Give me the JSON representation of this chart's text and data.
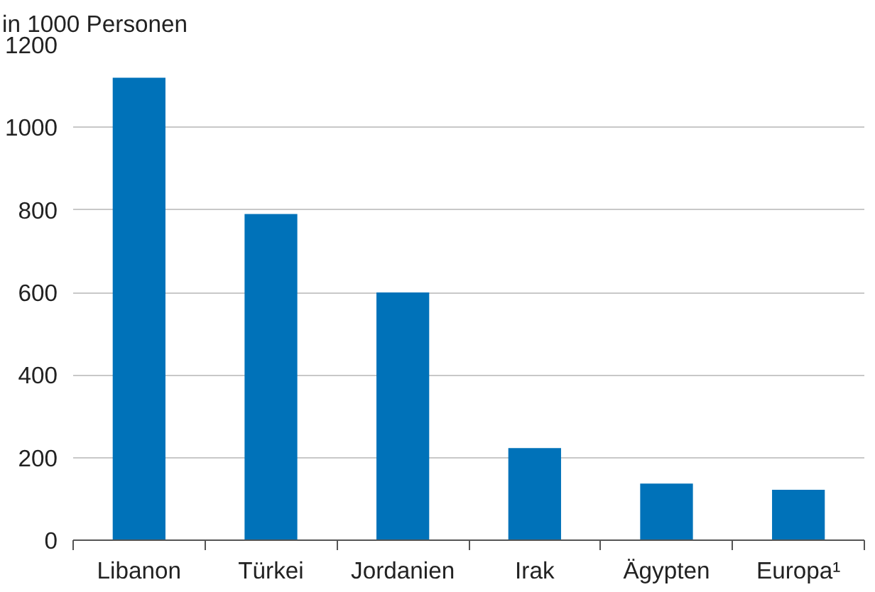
{
  "chart_data": {
    "type": "bar",
    "ylabel": "in 1000 Personen",
    "categories": [
      "Libanon",
      "Türkei",
      "Jordanien",
      "Irak",
      "Ägypten",
      "Europa¹"
    ],
    "values": [
      1120,
      790,
      600,
      223,
      137,
      122
    ],
    "color": "#0072b9",
    "ylim": [
      0,
      1200
    ],
    "yticks": [
      0,
      200,
      400,
      600,
      800,
      1000,
      1200
    ],
    "grid": "y"
  }
}
